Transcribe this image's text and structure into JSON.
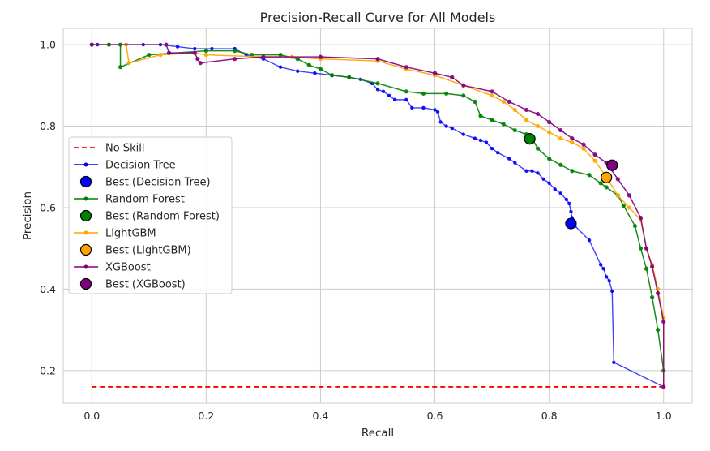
{
  "chart_data": {
    "type": "line",
    "title": "Precision-Recall Curve for All Models",
    "xlabel": "Recall",
    "ylabel": "Precision",
    "xlim": [
      -0.05,
      1.05
    ],
    "ylim": [
      0.12,
      1.04
    ],
    "xticks": [
      "0.0",
      "0.2",
      "0.4",
      "0.6",
      "0.8",
      "1.0"
    ],
    "yticks": [
      "0.2",
      "0.4",
      "0.6",
      "0.8",
      "1.0"
    ],
    "grid": true,
    "legend_position": "center-left",
    "no_skill": {
      "name": "No Skill",
      "y": 0.16,
      "color": "#ff0000"
    },
    "series": [
      {
        "name": "Decision Tree",
        "color": "#0000ff",
        "x": [
          0.0,
          0.01,
          0.03,
          0.06,
          0.09,
          0.12,
          0.15,
          0.18,
          0.21,
          0.25,
          0.27,
          0.3,
          0.33,
          0.36,
          0.39,
          0.42,
          0.45,
          0.47,
          0.49,
          0.5,
          0.51,
          0.52,
          0.53,
          0.55,
          0.56,
          0.58,
          0.6,
          0.605,
          0.61,
          0.62,
          0.63,
          0.65,
          0.67,
          0.68,
          0.69,
          0.7,
          0.71,
          0.73,
          0.74,
          0.76,
          0.77,
          0.78,
          0.79,
          0.8,
          0.81,
          0.82,
          0.83,
          0.835,
          0.838,
          0.84,
          0.845,
          0.87,
          0.89,
          0.895,
          0.9,
          0.905,
          0.91,
          0.913,
          1.0
        ],
        "y": [
          1.0,
          1.0,
          1.0,
          1.0,
          1.0,
          1.0,
          0.995,
          0.99,
          0.99,
          0.99,
          0.975,
          0.965,
          0.945,
          0.935,
          0.93,
          0.925,
          0.92,
          0.915,
          0.905,
          0.89,
          0.885,
          0.875,
          0.865,
          0.865,
          0.845,
          0.845,
          0.84,
          0.835,
          0.81,
          0.8,
          0.795,
          0.78,
          0.77,
          0.765,
          0.76,
          0.745,
          0.735,
          0.72,
          0.71,
          0.69,
          0.69,
          0.685,
          0.67,
          0.66,
          0.645,
          0.635,
          0.62,
          0.61,
          0.59,
          0.575,
          0.555,
          0.52,
          0.46,
          0.45,
          0.43,
          0.42,
          0.395,
          0.22,
          0.16
        ],
        "best": {
          "name": "Best (Decision Tree)",
          "x": 0.838,
          "y": 0.561
        }
      },
      {
        "name": "Random Forest",
        "color": "#008000",
        "x": [
          0.0,
          0.03,
          0.05,
          0.05,
          0.1,
          0.2,
          0.25,
          0.28,
          0.33,
          0.36,
          0.38,
          0.4,
          0.42,
          0.45,
          0.5,
          0.55,
          0.58,
          0.62,
          0.65,
          0.67,
          0.68,
          0.7,
          0.72,
          0.74,
          0.76,
          0.77,
          0.78,
          0.8,
          0.82,
          0.84,
          0.87,
          0.89,
          0.9,
          0.92,
          0.93,
          0.95,
          0.96,
          0.97,
          0.98,
          0.99,
          1.0,
          1.0
        ],
        "y": [
          1.0,
          1.0,
          1.0,
          0.945,
          0.975,
          0.985,
          0.985,
          0.975,
          0.975,
          0.965,
          0.95,
          0.94,
          0.925,
          0.92,
          0.905,
          0.885,
          0.88,
          0.88,
          0.875,
          0.86,
          0.825,
          0.815,
          0.805,
          0.79,
          0.78,
          0.77,
          0.745,
          0.72,
          0.705,
          0.69,
          0.68,
          0.66,
          0.65,
          0.63,
          0.605,
          0.555,
          0.5,
          0.45,
          0.38,
          0.3,
          0.2,
          0.16
        ],
        "best": {
          "name": "Best (Random Forest)",
          "x": 0.766,
          "y": 0.769
        }
      },
      {
        "name": "LightGBM",
        "color": "#ffa500",
        "x": [
          0.0,
          0.06,
          0.065,
          0.12,
          0.18,
          0.2,
          0.3,
          0.35,
          0.4,
          0.5,
          0.55,
          0.6,
          0.65,
          0.7,
          0.72,
          0.74,
          0.76,
          0.78,
          0.8,
          0.82,
          0.84,
          0.86,
          0.88,
          0.9,
          0.92,
          0.94,
          0.96,
          0.97,
          0.98,
          0.99,
          1.0,
          1.0
        ],
        "y": [
          1.0,
          1.0,
          0.955,
          0.975,
          0.98,
          0.975,
          0.97,
          0.97,
          0.965,
          0.96,
          0.94,
          0.925,
          0.9,
          0.875,
          0.86,
          0.84,
          0.815,
          0.8,
          0.785,
          0.77,
          0.76,
          0.745,
          0.715,
          0.675,
          0.63,
          0.6,
          0.57,
          0.5,
          0.46,
          0.4,
          0.33,
          0.16
        ],
        "best": {
          "name": "Best (LightGBM)",
          "x": 0.9,
          "y": 0.674
        }
      },
      {
        "name": "XGBoost",
        "color": "#800080",
        "x": [
          0.0,
          0.13,
          0.135,
          0.18,
          0.185,
          0.19,
          0.25,
          0.3,
          0.4,
          0.5,
          0.55,
          0.6,
          0.63,
          0.65,
          0.7,
          0.73,
          0.76,
          0.78,
          0.8,
          0.82,
          0.84,
          0.86,
          0.88,
          0.9,
          0.92,
          0.94,
          0.96,
          0.97,
          0.98,
          0.99,
          1.0,
          1.0
        ],
        "y": [
          1.0,
          1.0,
          0.98,
          0.98,
          0.965,
          0.955,
          0.965,
          0.97,
          0.97,
          0.965,
          0.945,
          0.93,
          0.92,
          0.9,
          0.885,
          0.86,
          0.84,
          0.83,
          0.81,
          0.79,
          0.77,
          0.755,
          0.73,
          0.71,
          0.67,
          0.63,
          0.575,
          0.5,
          0.455,
          0.39,
          0.32,
          0.16
        ],
        "best": {
          "name": "Best (XGBoost)",
          "x": 0.91,
          "y": 0.704
        }
      }
    ]
  }
}
